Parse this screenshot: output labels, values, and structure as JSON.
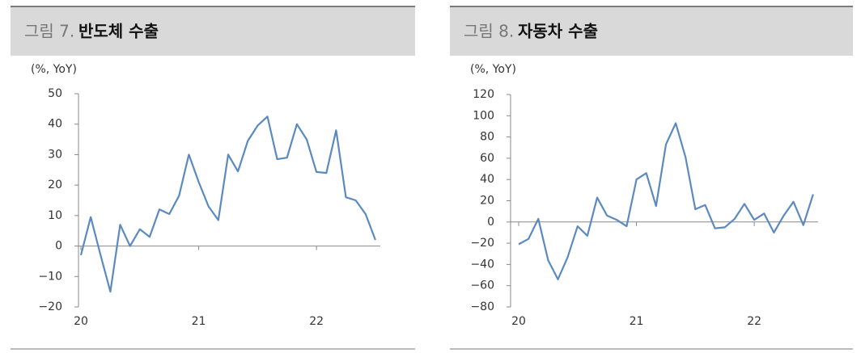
{
  "chart_data": [
    {
      "type": "line",
      "figure": "그림 7.",
      "title": "반도체 수출",
      "y_unit": "(%, YoY)",
      "categories": [
        "20",
        null,
        null,
        null,
        null,
        null,
        null,
        null,
        null,
        null,
        null,
        null,
        "21",
        null,
        null,
        null,
        null,
        null,
        null,
        null,
        null,
        null,
        null,
        null,
        "22",
        null,
        null,
        null,
        null,
        null,
        null
      ],
      "values": [
        -3,
        9.5,
        -3,
        -15,
        7,
        0,
        5.5,
        3,
        12,
        10.5,
        16.5,
        30,
        21,
        13,
        8.5,
        30,
        24.5,
        34.5,
        39.5,
        42.5,
        28.5,
        29,
        40,
        35,
        24.3,
        24,
        38,
        16,
        15,
        10.5,
        2
      ],
      "color": "#5b8ac0",
      "ylim": [
        -20,
        50
      ],
      "yticks": [
        {
          "value": -20,
          "label": "−20"
        },
        {
          "value": -10,
          "label": "−10"
        },
        0,
        10,
        20,
        30,
        40,
        50
      ]
    },
    {
      "type": "line",
      "figure": "그림 8.",
      "title": "자동차 수출",
      "y_unit": "(%, YoY)",
      "categories": [
        "20",
        null,
        null,
        null,
        null,
        null,
        null,
        null,
        null,
        null,
        null,
        null,
        "21",
        null,
        null,
        null,
        null,
        null,
        null,
        null,
        null,
        null,
        null,
        null,
        "22",
        null,
        null,
        null,
        null,
        null,
        null
      ],
      "values": [
        -21,
        -16,
        3,
        -36,
        -54,
        -33,
        -4,
        -13,
        23,
        6,
        2,
        -4,
        40,
        46,
        15,
        73,
        93,
        61,
        12,
        16,
        -6,
        -5,
        3,
        17,
        2,
        8,
        -10,
        6,
        19,
        -3,
        26
      ],
      "color": "#5b8ac0",
      "ylim": [
        -80,
        120
      ],
      "yticks": [
        {
          "value": -80,
          "label": "−80"
        },
        {
          "value": -60,
          "label": "−60"
        },
        {
          "value": -40,
          "label": "−40"
        },
        {
          "value": -20,
          "label": "−20"
        },
        0,
        20,
        40,
        60,
        80,
        100,
        120
      ]
    }
  ]
}
